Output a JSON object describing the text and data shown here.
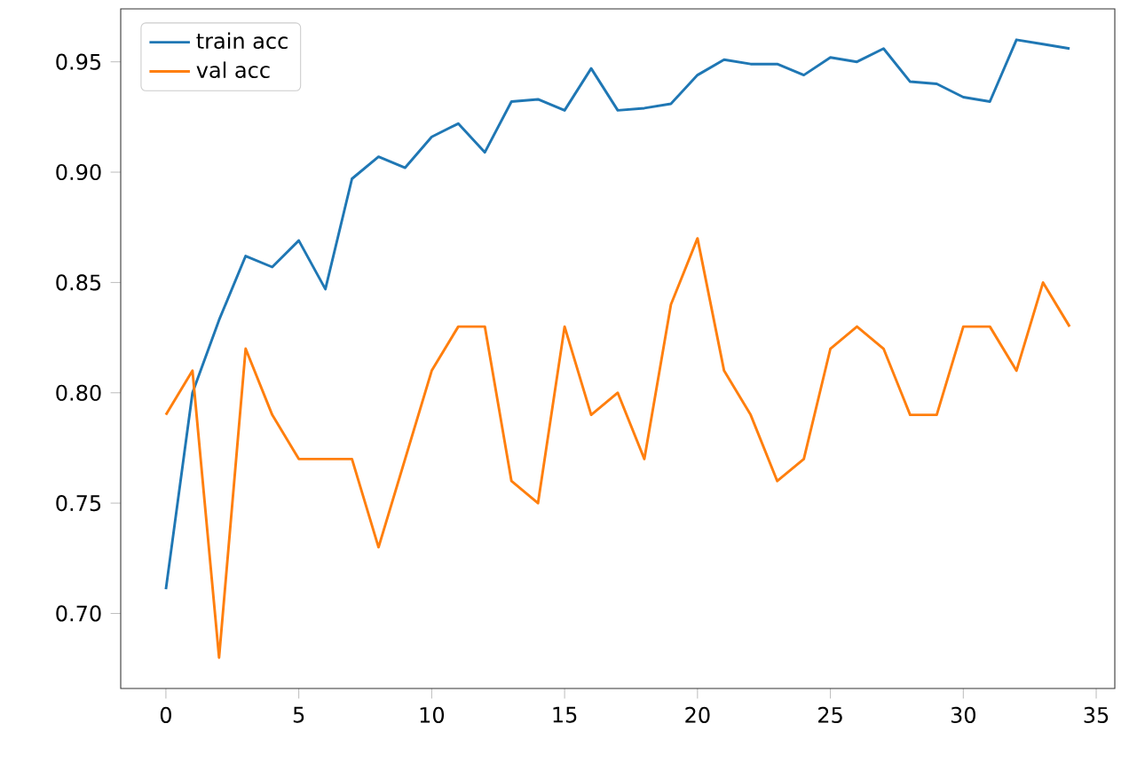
{
  "chart_data": {
    "type": "line",
    "x": [
      0,
      1,
      2,
      3,
      4,
      5,
      6,
      7,
      8,
      9,
      10,
      11,
      12,
      13,
      14,
      15,
      16,
      17,
      18,
      19,
      20,
      21,
      22,
      23,
      24,
      25,
      26,
      27,
      28,
      29,
      30,
      31,
      32,
      33,
      34
    ],
    "series": [
      {
        "name": "train acc",
        "color": "#1f77b4",
        "values": [
          0.711,
          0.8,
          0.833,
          0.862,
          0.857,
          0.869,
          0.847,
          0.897,
          0.907,
          0.902,
          0.916,
          0.922,
          0.909,
          0.932,
          0.933,
          0.928,
          0.947,
          0.928,
          0.929,
          0.931,
          0.944,
          0.951,
          0.949,
          0.949,
          0.944,
          0.952,
          0.95,
          0.956,
          0.941,
          0.94,
          0.934,
          0.932,
          0.96,
          0.958,
          0.956
        ]
      },
      {
        "name": "val acc",
        "color": "#ff7f0e",
        "values": [
          0.79,
          0.81,
          0.68,
          0.82,
          0.79,
          0.77,
          0.77,
          0.77,
          0.73,
          0.77,
          0.81,
          0.83,
          0.83,
          0.76,
          0.75,
          0.83,
          0.79,
          0.8,
          0.77,
          0.84,
          0.87,
          0.81,
          0.79,
          0.76,
          0.77,
          0.82,
          0.83,
          0.82,
          0.79,
          0.79,
          0.83,
          0.83,
          0.81,
          0.85,
          0.83
        ]
      }
    ],
    "xlim": [
      -1.7,
      35.7
    ],
    "ylim": [
      0.666,
      0.974
    ],
    "xticks": [
      0,
      5,
      10,
      15,
      20,
      25,
      30,
      35
    ],
    "yticks": [
      {
        "value": 0.7,
        "label": "0.70"
      },
      0.75,
      {
        "value": 0.8,
        "label": "0.80"
      },
      0.85,
      {
        "value": 0.9,
        "label": "0.90"
      },
      0.95
    ],
    "legend": "top left",
    "grid": false,
    "marker": "none",
    "line_style": "solid"
  }
}
